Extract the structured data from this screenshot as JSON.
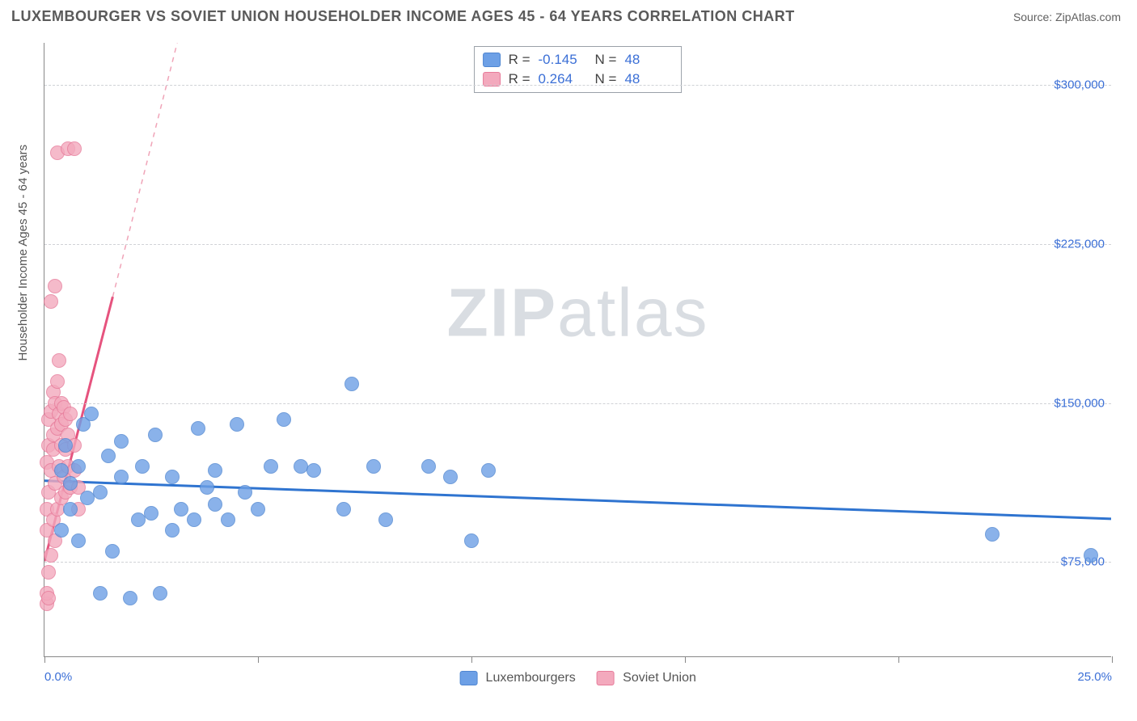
{
  "title": "LUXEMBOURGER VS SOVIET UNION HOUSEHOLDER INCOME AGES 45 - 64 YEARS CORRELATION CHART",
  "source_label": "Source:",
  "source_name": "ZipAtlas.com",
  "watermark_a": "ZIP",
  "watermark_b": "atlas",
  "ylabel": "Householder Income Ages 45 - 64 years",
  "chart": {
    "type": "scatter",
    "background_color": "#ffffff",
    "grid_color": "#d0d2d6",
    "axis_color": "#888888",
    "xlim": [
      0,
      25
    ],
    "ylim": [
      30000,
      320000
    ],
    "x_ticks": [
      0,
      5,
      10,
      15,
      20,
      25
    ],
    "x_tick_labels": {
      "0": "0.0%",
      "25": "25.0%"
    },
    "y_grid": [
      75000,
      150000,
      225000,
      300000
    ],
    "y_tick_labels": {
      "75000": "$75,000",
      "150000": "$150,000",
      "225000": "$225,000",
      "300000": "$300,000"
    },
    "point_radius": 9,
    "point_stroke_width": 1.2,
    "point_fill_opacity": 0.35,
    "series": [
      {
        "name": "Luxembourgers",
        "color": "#6da0e6",
        "stroke": "#4f86d1",
        "R": "-0.145",
        "N": "48",
        "trend": {
          "x1": 0,
          "y1": 113000,
          "x2": 25,
          "y2": 95000,
          "color": "#2f74d0",
          "width": 3,
          "dash": false
        },
        "points": [
          [
            0.4,
            118000
          ],
          [
            0.4,
            90000
          ],
          [
            0.5,
            130000
          ],
          [
            0.6,
            100000
          ],
          [
            0.6,
            112000
          ],
          [
            0.8,
            120000
          ],
          [
            0.8,
            85000
          ],
          [
            0.9,
            140000
          ],
          [
            1.0,
            105000
          ],
          [
            1.1,
            145000
          ],
          [
            1.3,
            60000
          ],
          [
            1.3,
            108000
          ],
          [
            1.5,
            125000
          ],
          [
            1.6,
            80000
          ],
          [
            1.8,
            115000
          ],
          [
            1.8,
            132000
          ],
          [
            2.0,
            58000
          ],
          [
            2.2,
            95000
          ],
          [
            2.3,
            120000
          ],
          [
            2.5,
            98000
          ],
          [
            2.6,
            135000
          ],
          [
            2.7,
            60000
          ],
          [
            3.0,
            90000
          ],
          [
            3.0,
            115000
          ],
          [
            3.2,
            100000
          ],
          [
            3.5,
            95000
          ],
          [
            3.6,
            138000
          ],
          [
            3.8,
            110000
          ],
          [
            4.0,
            102000
          ],
          [
            4.0,
            118000
          ],
          [
            4.3,
            95000
          ],
          [
            4.5,
            140000
          ],
          [
            4.7,
            108000
          ],
          [
            5.0,
            100000
          ],
          [
            5.3,
            120000
          ],
          [
            5.6,
            142000
          ],
          [
            6.0,
            120000
          ],
          [
            6.3,
            118000
          ],
          [
            7.0,
            100000
          ],
          [
            7.2,
            159000
          ],
          [
            7.7,
            120000
          ],
          [
            8.0,
            95000
          ],
          [
            9.0,
            120000
          ],
          [
            9.5,
            115000
          ],
          [
            10.0,
            85000
          ],
          [
            10.4,
            118000
          ],
          [
            22.2,
            88000
          ],
          [
            24.5,
            78000
          ]
        ]
      },
      {
        "name": "Soviet Union",
        "color": "#f3a9bd",
        "stroke": "#e77b9a",
        "R": "0.264",
        "N": "48",
        "trend_solid": {
          "x1": 0,
          "y1": 75000,
          "x2": 1.6,
          "y2": 200000,
          "color": "#e6537e",
          "width": 3
        },
        "trend_dash": {
          "x1": 1.6,
          "y1": 200000,
          "x2": 3.3,
          "y2": 335000,
          "color": "#f0a4b8",
          "width": 1.5
        },
        "points": [
          [
            0.05,
            55000
          ],
          [
            0.05,
            60000
          ],
          [
            0.05,
            90000
          ],
          [
            0.05,
            100000
          ],
          [
            0.05,
            122000
          ],
          [
            0.1,
            70000
          ],
          [
            0.1,
            58000
          ],
          [
            0.1,
            108000
          ],
          [
            0.1,
            130000
          ],
          [
            0.1,
            142000
          ],
          [
            0.15,
            78000
          ],
          [
            0.15,
            118000
          ],
          [
            0.15,
            146000
          ],
          [
            0.15,
            198000
          ],
          [
            0.2,
            95000
          ],
          [
            0.2,
            135000
          ],
          [
            0.2,
            155000
          ],
          [
            0.2,
            128000
          ],
          [
            0.25,
            85000
          ],
          [
            0.25,
            112000
          ],
          [
            0.25,
            150000
          ],
          [
            0.25,
            205000
          ],
          [
            0.3,
            100000
          ],
          [
            0.3,
            138000
          ],
          [
            0.3,
            160000
          ],
          [
            0.35,
            120000
          ],
          [
            0.35,
            145000
          ],
          [
            0.35,
            170000
          ],
          [
            0.4,
            105000
          ],
          [
            0.4,
            130000
          ],
          [
            0.4,
            150000
          ],
          [
            0.4,
            140000
          ],
          [
            0.45,
            115000
          ],
          [
            0.45,
            148000
          ],
          [
            0.5,
            128000
          ],
          [
            0.5,
            142000
          ],
          [
            0.5,
            108000
          ],
          [
            0.55,
            135000
          ],
          [
            0.55,
            120000
          ],
          [
            0.6,
            145000
          ],
          [
            0.6,
            110000
          ],
          [
            0.7,
            130000
          ],
          [
            0.7,
            118000
          ],
          [
            0.3,
            268000
          ],
          [
            0.55,
            270000
          ],
          [
            0.7,
            270000
          ],
          [
            0.8,
            110000
          ],
          [
            0.8,
            100000
          ]
        ]
      }
    ]
  }
}
